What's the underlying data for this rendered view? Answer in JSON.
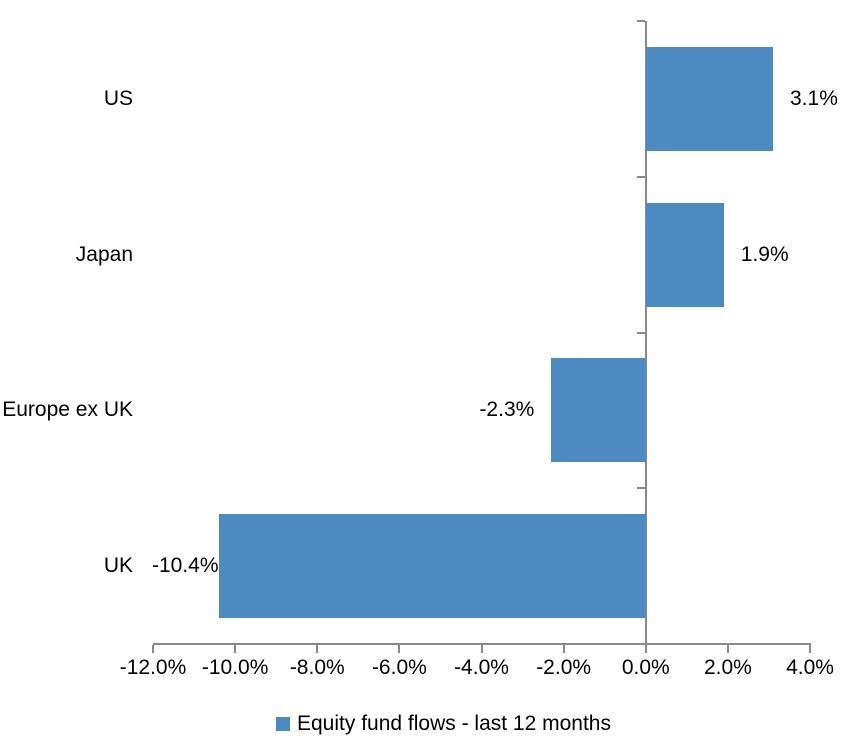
{
  "chart_data": {
    "type": "bar",
    "orientation": "horizontal",
    "title": "",
    "categories": [
      "US",
      "Japan",
      "Europe ex UK",
      "UK"
    ],
    "series": [
      {
        "name": "Equity fund flows - last 12 months",
        "values": [
          3.1,
          1.9,
          -2.3,
          -10.4
        ],
        "data_labels": [
          "3.1%",
          "1.9%",
          "-2.3%",
          "-10.4%"
        ]
      }
    ],
    "xlim": [
      -12,
      4
    ],
    "x_ticks": [
      -12,
      -10,
      -8,
      -6,
      -4,
      -2,
      0,
      2,
      4
    ],
    "x_tick_labels": [
      "-12.0%",
      "-10.0%",
      "-8.0%",
      "-6.0%",
      "-4.0%",
      "-2.0%",
      "0.0%",
      "2.0%",
      "4.0%"
    ],
    "grid": false,
    "legend_position": "bottom",
    "colors": {
      "bar": "#4d8ac1",
      "axis": "#8a8a8a",
      "text": "#000000",
      "background": "#ffffff"
    }
  },
  "legend": {
    "label": "Equity fund flows - last 12 months"
  }
}
